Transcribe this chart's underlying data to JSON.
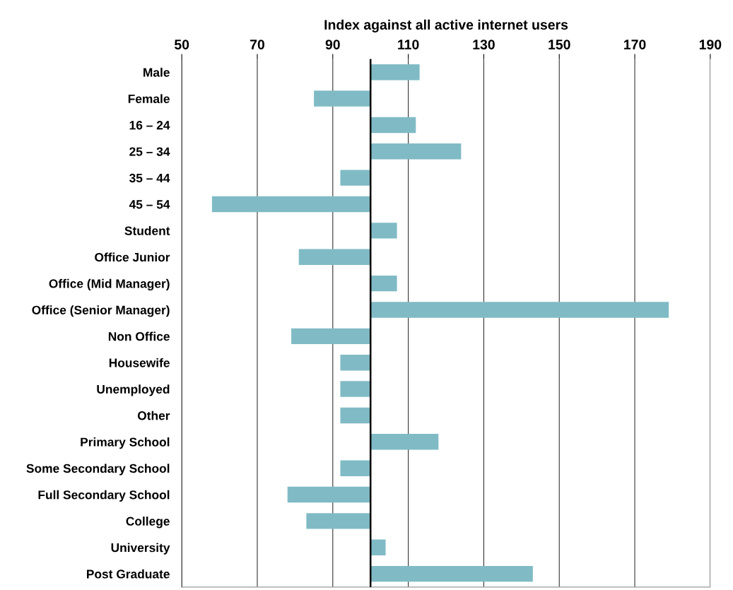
{
  "chart_data": {
    "type": "bar",
    "orientation": "horizontal",
    "xlabel": "Index against all active internet users",
    "categories": [
      "Male",
      "Female",
      "16 – 24",
      "25 – 34",
      "35 – 44",
      "45 – 54",
      "Student",
      "Office Junior",
      "Office (Mid Manager)",
      "Office (Senior Manager)",
      "Non Office",
      "Housewife",
      "Unemployed",
      "Other",
      "Primary School",
      "Some Secondary School",
      "Full Secondary School",
      "College",
      "University",
      "Post Graduate"
    ],
    "base": [
      100,
      100,
      100,
      100,
      100,
      100,
      100,
      100,
      100,
      100,
      100,
      100,
      100,
      100,
      100,
      100,
      100,
      100,
      100,
      100
    ],
    "values": [
      13,
      -15,
      12,
      24,
      -8,
      -42,
      7,
      -19,
      7,
      79,
      -21,
      -8,
      -8,
      -8,
      18,
      -8,
      -22,
      -17,
      4,
      43
    ],
    "color": "#80bbc5",
    "xlim": [
      50,
      190
    ],
    "xticks": [
      50,
      70,
      90,
      110,
      130,
      150,
      170,
      190
    ],
    "ref_lines": [
      {
        "axis": "x",
        "value": 100,
        "color": "#000000"
      }
    ],
    "grid": "x",
    "legend": false
  }
}
